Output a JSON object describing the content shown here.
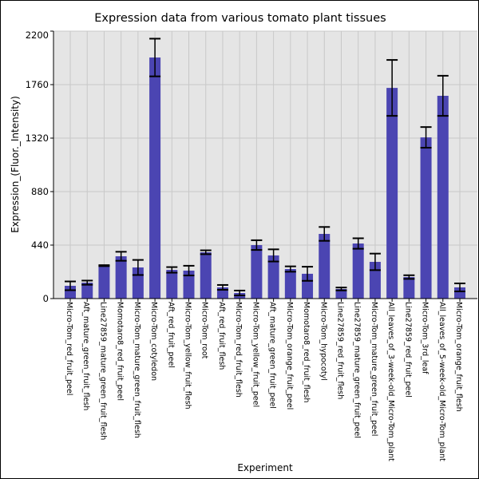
{
  "chart_data": {
    "type": "bar",
    "title": "Expression data from various tomato plant tissues",
    "xlabel": "Experiment",
    "ylabel": "Expression_(Fluor._Intensity)",
    "ylim": [
      0,
      2200
    ],
    "yticks": [
      0,
      440,
      880,
      1320,
      1760,
      2200
    ],
    "grid": true,
    "categories": [
      "Micro-Tom_red_fruit_peel",
      "Aft_mature_green_fruit_flesh",
      "Line27859_mature_green_fruit_flesh",
      "Momotaro8_red_fruit_peel",
      "Micro-Tom_mature_green_fruit_flesh",
      "Micro-Tom_cotyledon",
      "Aft_red_fruit_peel",
      "Micro-Tom_yellow_fruit_flesh",
      "Micro-Tom_root",
      "Aft_red_fruit_flesh",
      "Micro-Tom_red_fruit_flesh",
      "Micro-Tom_yellow_fruit_peel",
      "Aft_mature_green_fruit_peel",
      "Micro-Tom_orange_fruit_peel",
      "Momotaro8_red_fruit_flesh",
      "Micro-Tom_hypocotyl",
      "Line27859_red_fruit_flesh",
      "Line27859_mature_green_fruit_peel",
      "Micro-Tom_mature_green_fruit_peel",
      "All_leaves_of_3-week-old_Micro-Tom_plant",
      "Line27859_red_fruit_peel",
      "Micro-Tom_3rd_leaf",
      "All_leaves_of_5-week-old_Micro-Tom_plant",
      "Micro-Tom_orange_fruit_flesh"
    ],
    "values": [
      105,
      131,
      271,
      348,
      256,
      1983,
      236,
      230,
      381,
      92,
      46,
      440,
      355,
      243,
      204,
      532,
      79,
      453,
      302,
      1733,
      177,
      1326,
      1668,
      92
    ],
    "errors": [
      36,
      17,
      4,
      37,
      62,
      155,
      23,
      40,
      16,
      20,
      20,
      40,
      50,
      22,
      58,
      57,
      12,
      43,
      68,
      230,
      15,
      85,
      165,
      33
    ],
    "colors": {
      "bar": "#4b45b2",
      "background": "#e5e5e5",
      "grid": "#c8c8c8",
      "error": "#000000"
    }
  }
}
